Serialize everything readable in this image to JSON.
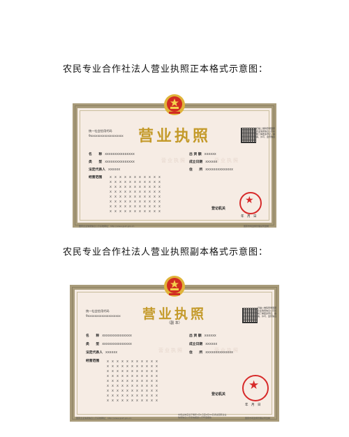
{
  "headings": {
    "original": "农民专业合作社法人营业执照正本格式示意图：",
    "duplicate": "农民专业合作社法人营业执照副本格式示意图："
  },
  "license": {
    "code_label": "统一社会信用代码",
    "code_value": "9xxxxxxxxxxxxxxxxxxx",
    "title": "营业执照",
    "duplicate_sub": "（副 本）",
    "qr_text": "扫描二维码登录国家企业信用信息公示系统了解更多登记、备案、许可、监管信息",
    "left_fields": [
      {
        "label": "名　　称",
        "value": "xxxxxxxxxxxxxxx"
      },
      {
        "label": "类　　型",
        "value": "xxxxxxxxxxxxxxx"
      },
      {
        "label": "法定代表人",
        "value": "xxxxxx"
      },
      {
        "label": "经营范围",
        "value": ""
      }
    ],
    "right_fields": [
      {
        "label": "出 资 额",
        "value": "xxxxxx"
      },
      {
        "label": "成立日期",
        "value": "xxxxxx"
      },
      {
        "label": "住　　所",
        "value": "xxxxxxxxxxxxxx"
      }
    ],
    "scope_char": "x",
    "issuer": "登记机关",
    "year_month": "年　月　日",
    "footer_left": "国家企业信用信息公示系统网址：http://www.gsxt.gov.cn",
    "footer_mid": "国家市场监督管理总局监制",
    "footer_right": "国家市场监督管理总局监制",
    "footer_mid2": "国家企业信用信息公示系统网址：http://www.gsxt.gov.cn",
    "dup_footer_note": "市场主体应当于每年1月1日至6月30日通过国家企业信用信息公示系统报送公示年度报告",
    "watermark": "营业执照"
  },
  "colors": {
    "title": "#c49a2a",
    "seal": "#d72a2a",
    "border": "#a89b7a",
    "paper": "#f6ece4"
  }
}
